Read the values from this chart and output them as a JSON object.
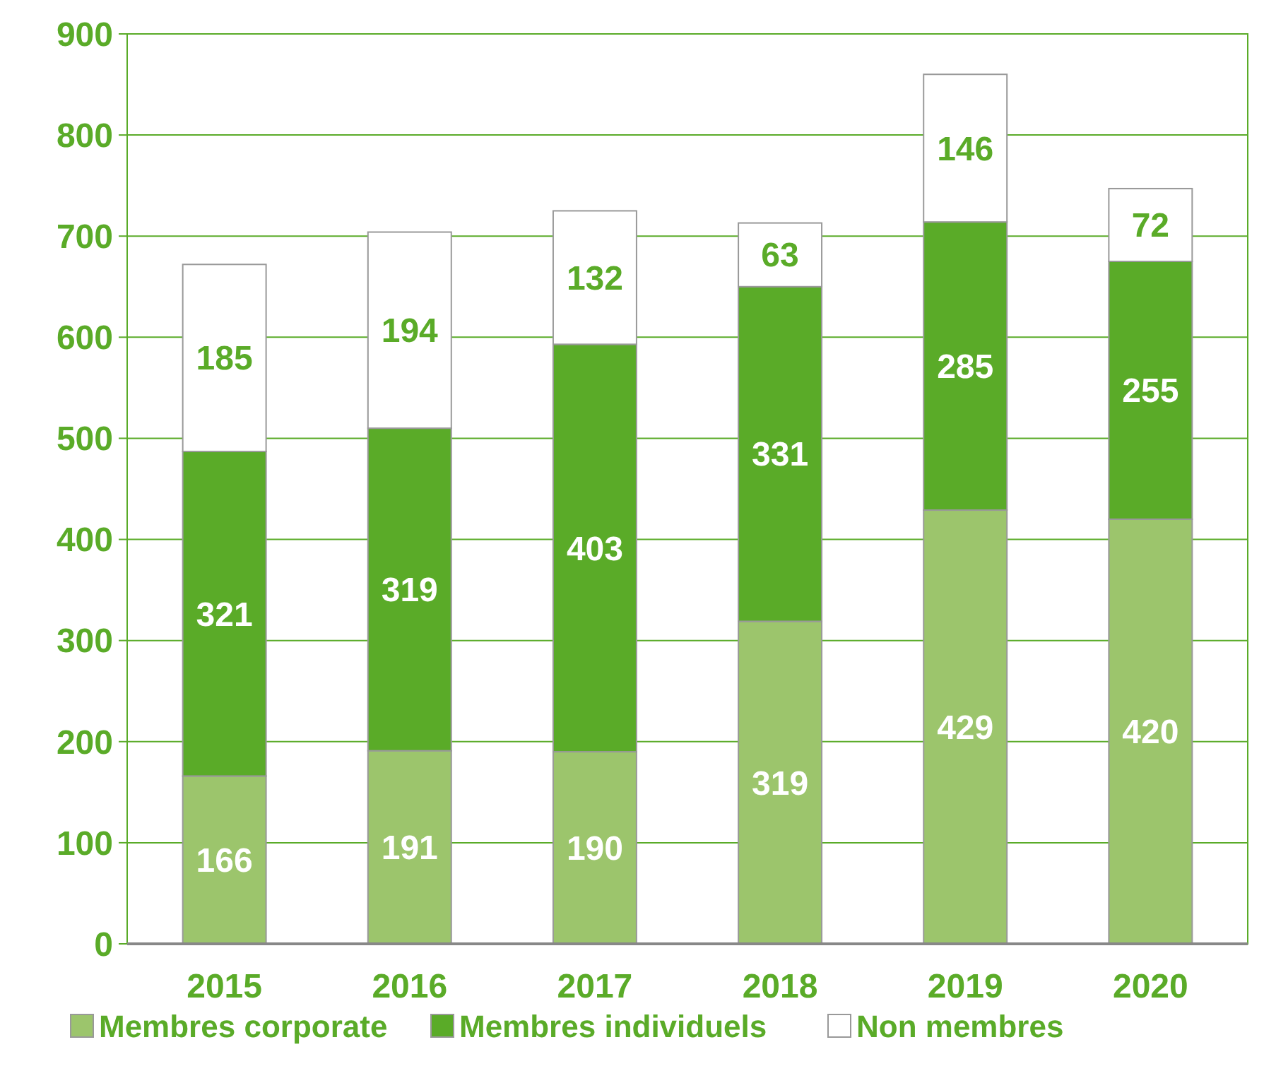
{
  "chart_data": {
    "type": "bar",
    "stacked": true,
    "categories": [
      "2015",
      "2016",
      "2017",
      "2018",
      "2019",
      "2020"
    ],
    "series": [
      {
        "name": "Membres corporate",
        "color": "#9cc56c",
        "values": [
          166,
          191,
          190,
          319,
          429,
          420
        ]
      },
      {
        "name": "Membres individuels",
        "color": "#5aab28",
        "values": [
          321,
          319,
          403,
          331,
          285,
          255
        ]
      },
      {
        "name": "Non membres",
        "color": "#ffffff",
        "values": [
          185,
          194,
          132,
          63,
          146,
          72
        ]
      }
    ],
    "ylim": [
      0,
      900
    ],
    "yticks": [
      0,
      100,
      200,
      300,
      400,
      500,
      600,
      700,
      800,
      900
    ],
    "grid": "y",
    "legend": "bottom",
    "data_labels": true
  }
}
